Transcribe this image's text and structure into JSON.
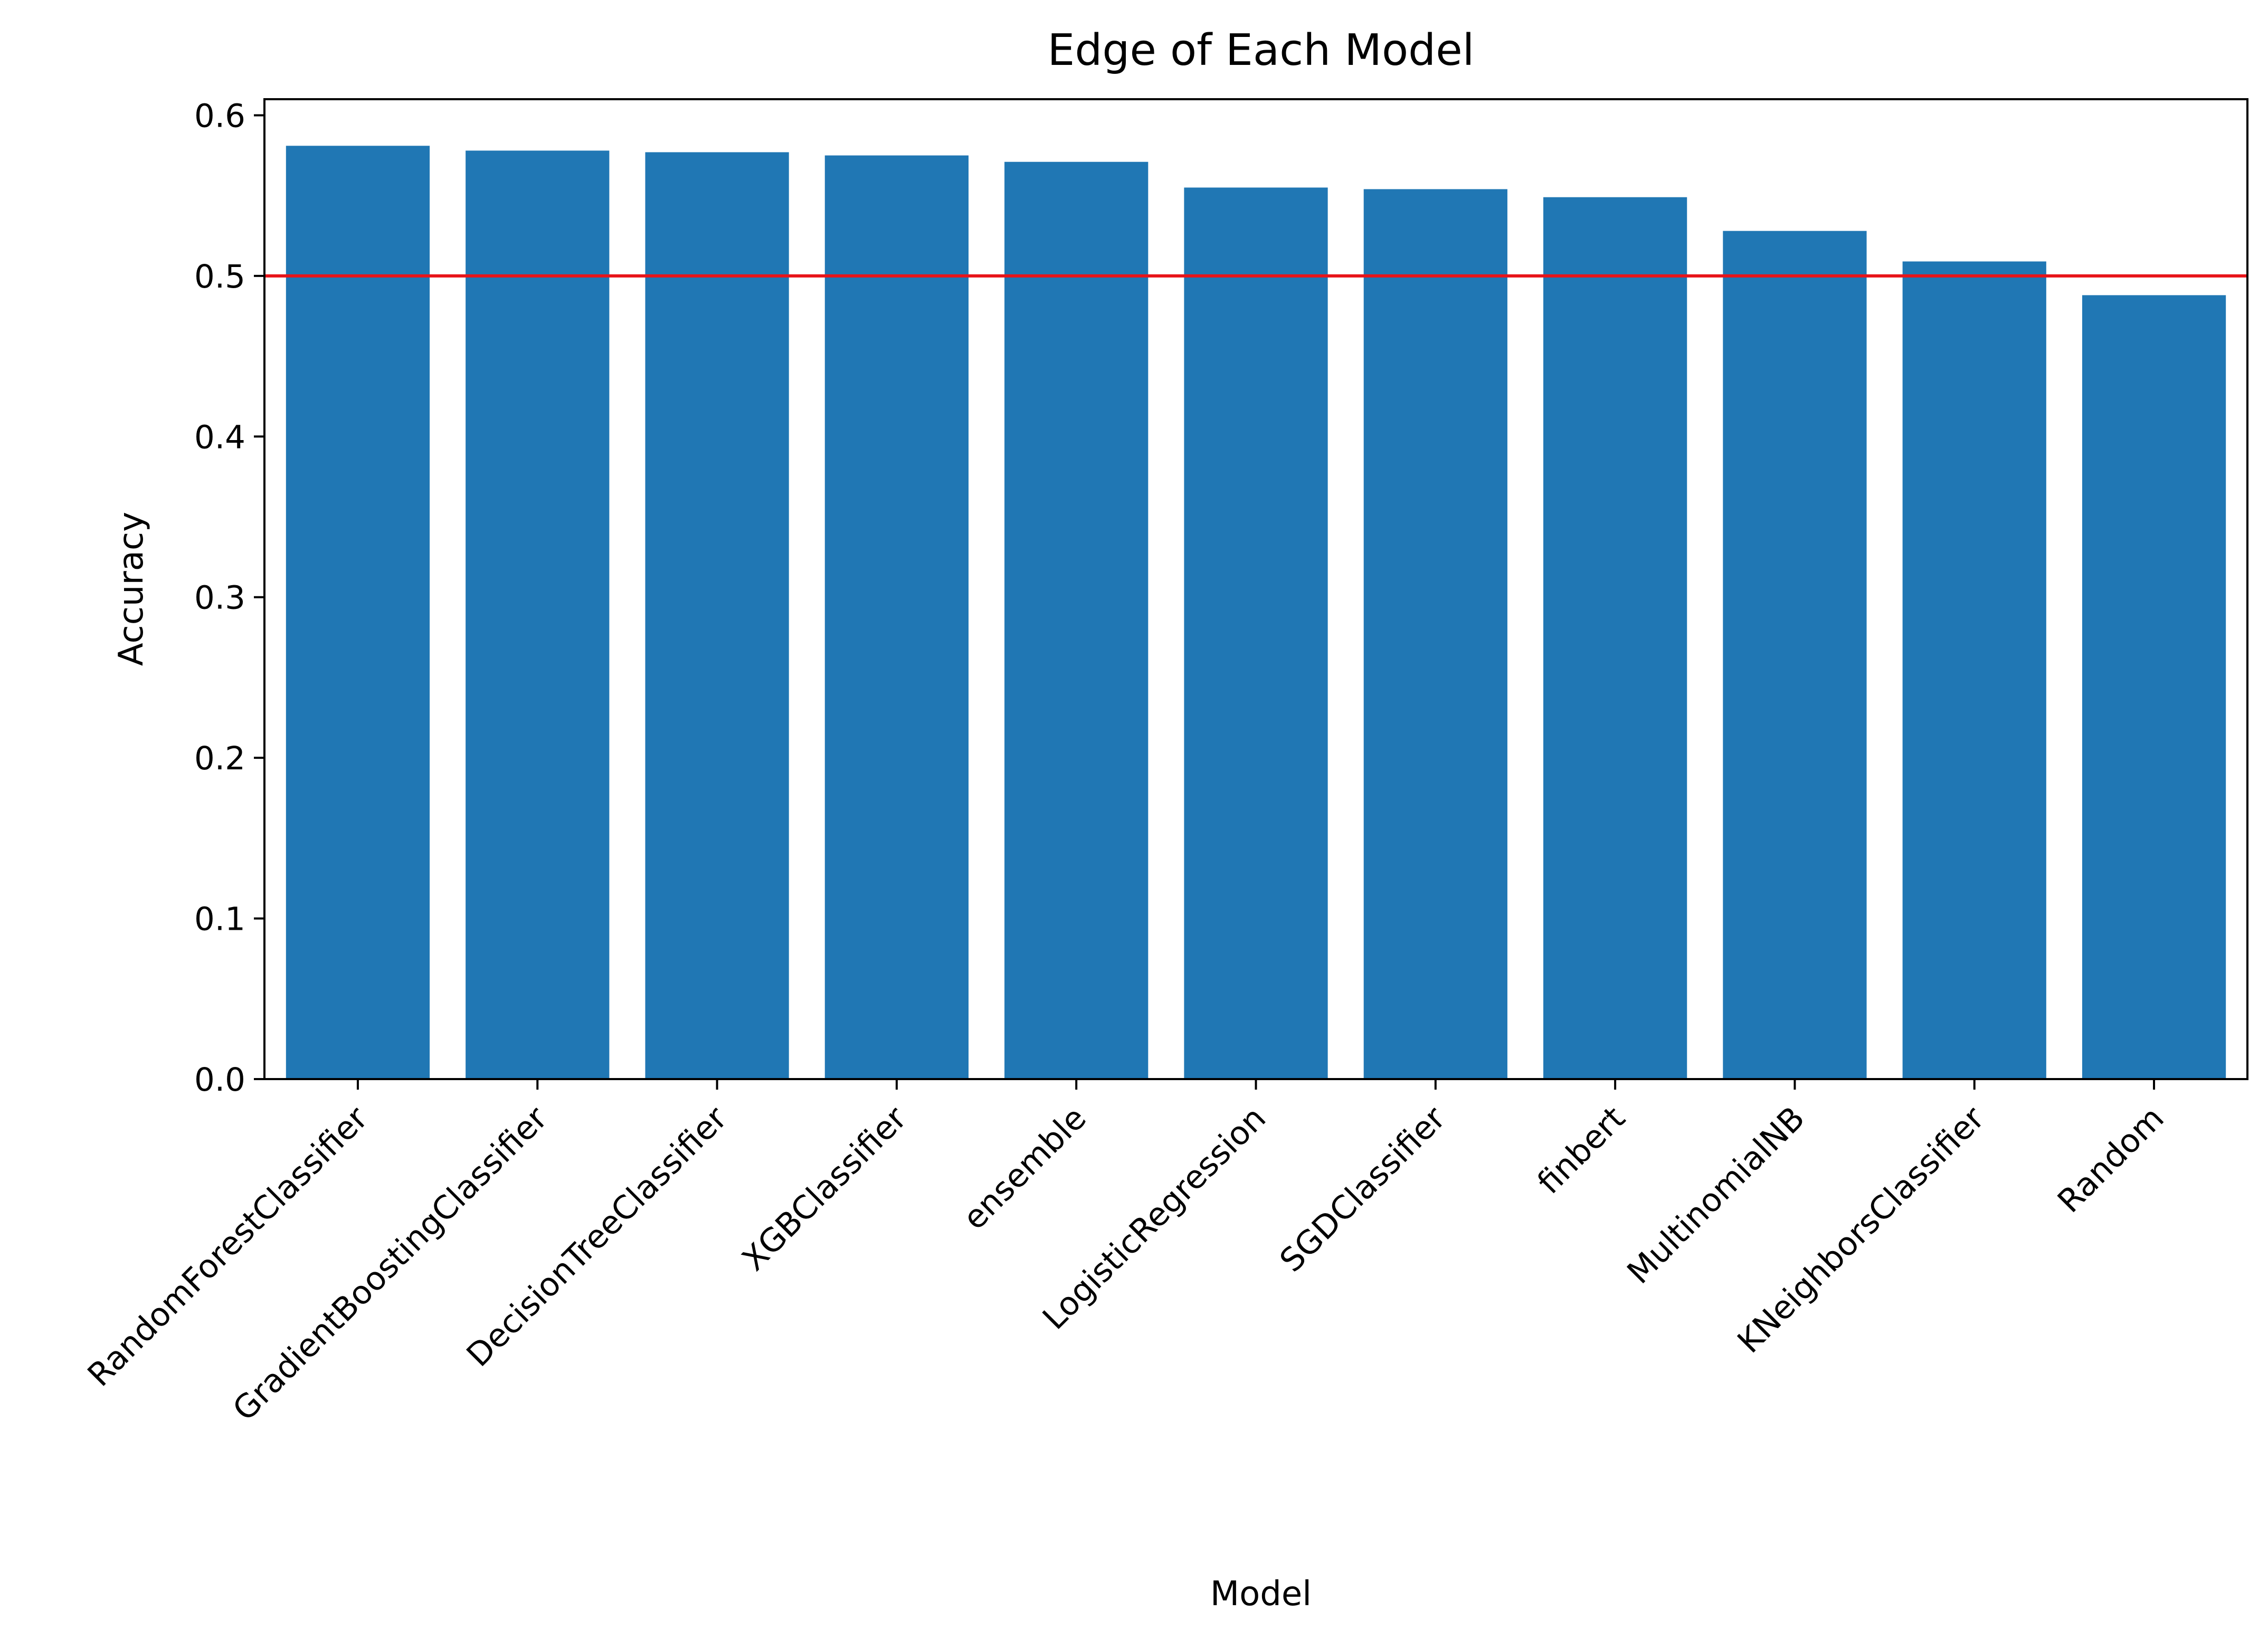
{
  "chart_data": {
    "type": "bar",
    "title": "Edge of Each Model",
    "xlabel": "Model",
    "ylabel": "Accuracy",
    "categories": [
      "RandomForestClassifier",
      "GradientBoostingClassifier",
      "DecisionTreeClassifier",
      "XGBClassifier",
      "ensemble",
      "LogisticRegression",
      "SGDClassifier",
      "finbert",
      "MultinomialNB",
      "KNeighborsClassifier",
      "Random"
    ],
    "values": [
      0.581,
      0.578,
      0.577,
      0.575,
      0.571,
      0.555,
      0.554,
      0.549,
      0.528,
      0.509,
      0.488
    ],
    "ylim": [
      0,
      0.61
    ],
    "yticks": [
      0.0,
      0.1,
      0.2,
      0.3,
      0.4,
      0.5,
      0.6
    ],
    "ytick_labels": [
      "0.0",
      "0.1",
      "0.2",
      "0.3",
      "0.4",
      "0.5",
      "0.6"
    ],
    "reference_line": {
      "y": 0.5,
      "color": "#e8141a"
    },
    "bar_color": "#2077b4",
    "grid": false,
    "legend": "none"
  }
}
